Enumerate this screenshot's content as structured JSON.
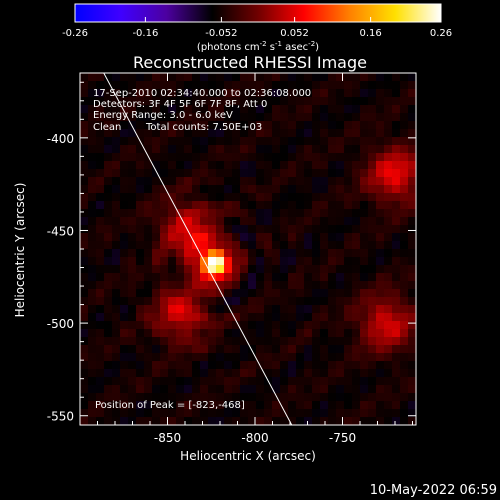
{
  "chart_data": {
    "type": "heatmap",
    "title": "Reconstructed RHESSI Image",
    "xlabel": "Heliocentric X (arcsec)",
    "ylabel": "Heliocentric Y (arcsec)",
    "xlim": [
      -900,
      -708
    ],
    "ylim": [
      -555,
      -365
    ],
    "x_ticks": [
      -850,
      -800,
      -750
    ],
    "y_ticks": [
      -550,
      -500,
      -450,
      -400
    ],
    "colorbar": {
      "label_main": "(photons cm",
      "sup1": "-2",
      "mid1": " s",
      "sup2": "-1",
      "mid2": " asec",
      "sup3": "-2",
      "label_end": ")",
      "range": [
        -0.26,
        0.26
      ],
      "ticks": [
        "-0.26",
        "-0.16",
        "-0.052",
        "0.052",
        "0.16",
        "0.26"
      ],
      "colors": [
        "#0000ff",
        "#3f00ff",
        "#4c00a0",
        "#000000",
        "#700000",
        "#ff0000",
        "#ff8000",
        "#ffe000",
        "#ffffff"
      ]
    },
    "annotations": {
      "time_range": "17-Sep-2010 02:34:40.000 to 02:36:08.000",
      "detectors": "Detectors: 3F 4F 5F 6F 7F 8F, Att 0",
      "energy": "Energy Range: 3.0 - 6.0 keV",
      "method": "Clean",
      "counts": "Total counts: 7.50E+03",
      "peak": "Position of Peak = [-823,-468]"
    },
    "peak": {
      "x": -823,
      "y": -468,
      "value": 0.26
    },
    "secondary_sources": [
      {
        "x": -838,
        "y": -450,
        "value": 0.06
      },
      {
        "x": -842,
        "y": -495,
        "value": 0.05
      },
      {
        "x": -720,
        "y": -420,
        "value": 0.06
      },
      {
        "x": -725,
        "y": -500,
        "value": 0.05
      }
    ],
    "limb": [
      {
        "x": -887,
        "y": -364
      },
      {
        "x": -779,
        "y": -555
      }
    ],
    "footer_date": "10-May-2022 06:59"
  }
}
